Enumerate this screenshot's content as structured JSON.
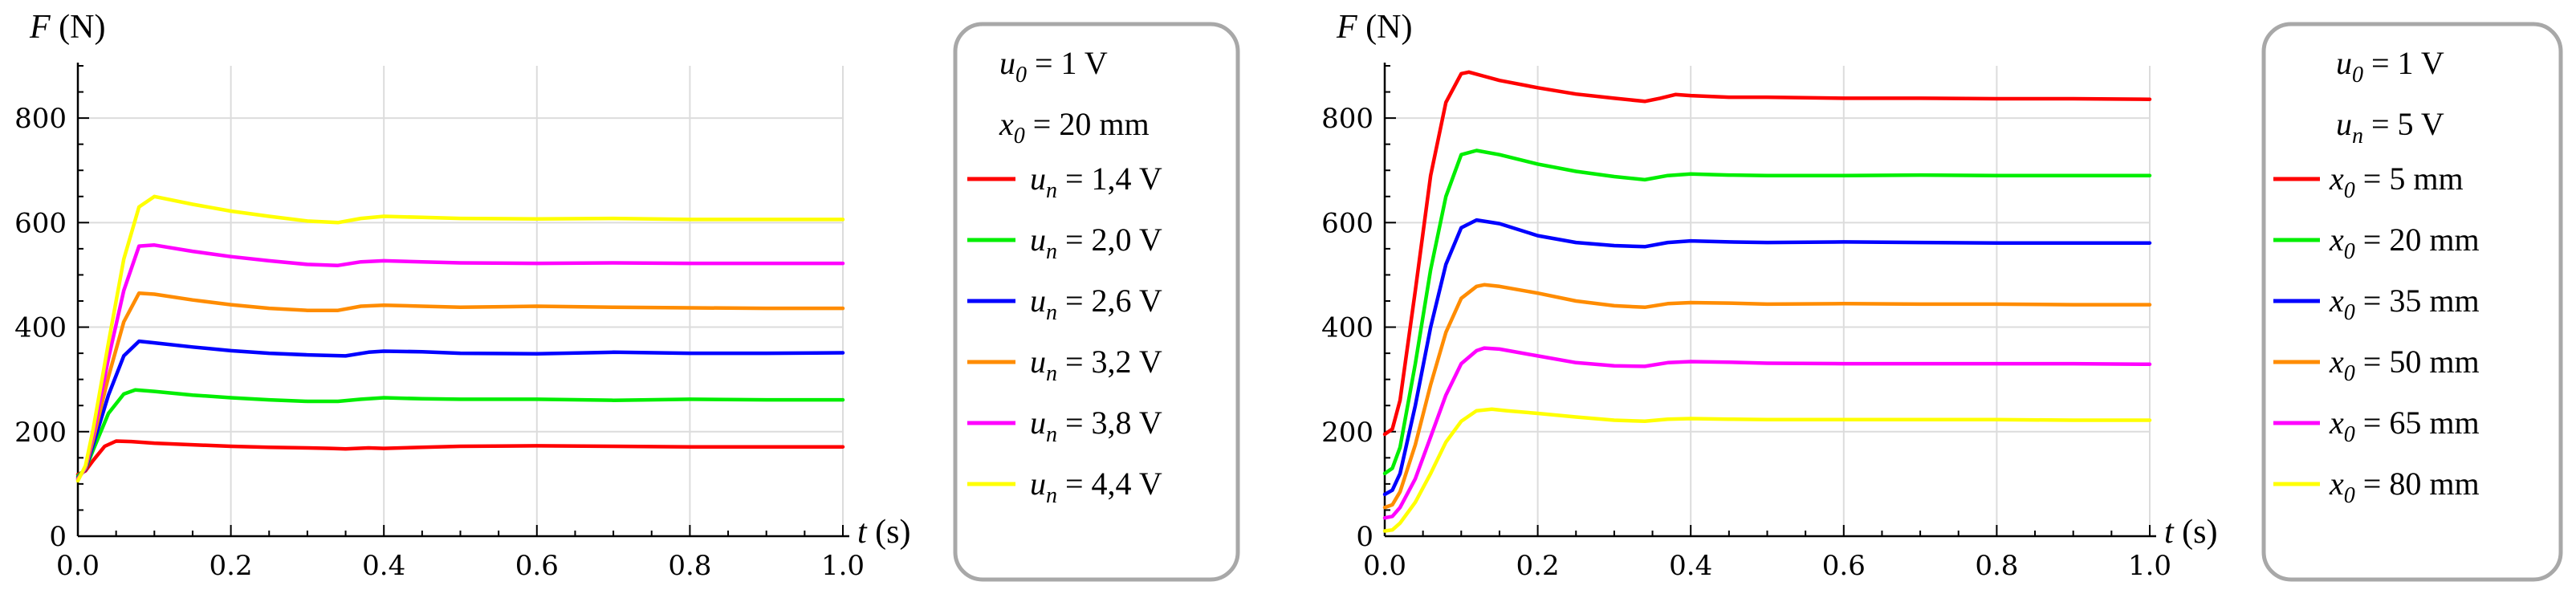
{
  "charts": [
    {
      "chart_data": {
        "type": "line",
        "title": "",
        "xlabel": "t (s)",
        "ylabel": "F (N)",
        "xlim": [
          0,
          1
        ],
        "ylim": [
          0,
          900
        ],
        "xticks": [
          "0.0",
          "0.2",
          "0.4",
          "0.6",
          "0.8",
          "1.0"
        ],
        "yticks": [
          "0",
          "200",
          "400",
          "600",
          "800"
        ],
        "xtick_values": [
          0,
          0.2,
          0.4,
          0.6,
          0.8,
          1.0
        ],
        "ytick_values": [
          0,
          200,
          400,
          600,
          800
        ],
        "grid": true,
        "legend_position": "right",
        "legend_header": [
          {
            "var": "u",
            "sub": "0",
            "text": " = 1 V"
          },
          {
            "var": "x",
            "sub": "0",
            "text": " = 20 mm"
          }
        ],
        "series": [
          {
            "name": "u_n = 1,4 V",
            "var": "u",
            "sub": "n",
            "text": " = 1,4 V",
            "color": "#ff0000",
            "x": [
              0,
              0.01,
              0.02,
              0.035,
              0.05,
              0.07,
              0.1,
              0.15,
              0.2,
              0.25,
              0.3,
              0.33,
              0.35,
              0.38,
              0.4,
              0.45,
              0.5,
              0.6,
              0.7,
              0.8,
              0.9,
              1.0
            ],
            "y": [
              118,
              125,
              145,
              172,
              182,
              181,
              178,
              175,
              172,
              170,
              169,
              168,
              167,
              169,
              168,
              170,
              172,
              173,
              172,
              171,
              171,
              171
            ]
          },
          {
            "name": "u_n = 2,0 V",
            "var": "u",
            "sub": "n",
            "text": " = 2,0 V",
            "color": "#00ee00",
            "x": [
              0,
              0.01,
              0.02,
              0.04,
              0.06,
              0.075,
              0.1,
              0.15,
              0.2,
              0.25,
              0.3,
              0.34,
              0.37,
              0.4,
              0.45,
              0.5,
              0.6,
              0.7,
              0.8,
              0.9,
              1.0
            ],
            "y": [
              115,
              128,
              165,
              235,
              272,
              280,
              277,
              270,
              265,
              261,
              258,
              258,
              262,
              265,
              263,
              262,
              262,
              260,
              262,
              261,
              261
            ]
          },
          {
            "name": "u_n = 2,6 V",
            "var": "u",
            "sub": "n",
            "text": " = 2,6 V",
            "color": "#0000ff",
            "x": [
              0,
              0.01,
              0.02,
              0.04,
              0.06,
              0.08,
              0.1,
              0.15,
              0.2,
              0.25,
              0.3,
              0.35,
              0.38,
              0.4,
              0.45,
              0.5,
              0.6,
              0.7,
              0.8,
              0.9,
              1.0
            ],
            "y": [
              112,
              128,
              175,
              270,
              345,
              373,
              370,
              362,
              355,
              350,
              347,
              345,
              352,
              354,
              353,
              350,
              349,
              352,
              350,
              350,
              351
            ]
          },
          {
            "name": "u_n = 3,2 V",
            "var": "u",
            "sub": "n",
            "text": " = 3,2 V",
            "color": "#ff8c00",
            "x": [
              0,
              0.01,
              0.02,
              0.04,
              0.06,
              0.08,
              0.1,
              0.15,
              0.2,
              0.25,
              0.3,
              0.34,
              0.37,
              0.4,
              0.45,
              0.5,
              0.6,
              0.7,
              0.8,
              0.9,
              1.0
            ],
            "y": [
              110,
              130,
              185,
              305,
              410,
              465,
              463,
              452,
              443,
              436,
              432,
              432,
              440,
              442,
              440,
              438,
              440,
              438,
              437,
              436,
              436
            ]
          },
          {
            "name": "u_n = 3,8 V",
            "var": "u",
            "sub": "n",
            "text": " = 3,8 V",
            "color": "#ff00ff",
            "x": [
              0,
              0.01,
              0.02,
              0.04,
              0.06,
              0.08,
              0.1,
              0.15,
              0.2,
              0.25,
              0.3,
              0.34,
              0.37,
              0.4,
              0.45,
              0.5,
              0.6,
              0.7,
              0.8,
              0.9,
              1.0
            ],
            "y": [
              108,
              132,
              195,
              340,
              470,
              555,
              557,
              545,
              535,
              527,
              520,
              518,
              525,
              527,
              525,
              523,
              522,
              523,
              522,
              522,
              522
            ]
          },
          {
            "name": "u_n = 4,4 V",
            "var": "u",
            "sub": "n",
            "text": " = 4,4 V",
            "color": "#ffff00",
            "x": [
              0,
              0.01,
              0.02,
              0.04,
              0.06,
              0.08,
              0.1,
              0.15,
              0.2,
              0.25,
              0.3,
              0.34,
              0.37,
              0.4,
              0.45,
              0.5,
              0.6,
              0.7,
              0.8,
              0.9,
              1.0
            ],
            "y": [
              106,
              135,
              205,
              370,
              530,
              630,
              650,
              635,
              622,
              612,
              603,
              600,
              608,
              612,
              610,
              608,
              607,
              608,
              606,
              606,
              606
            ]
          }
        ]
      }
    },
    {
      "chart_data": {
        "type": "line",
        "title": "",
        "xlabel": "t (s)",
        "ylabel": "F (N)",
        "xlim": [
          0,
          1
        ],
        "ylim": [
          0,
          900
        ],
        "xticks": [
          "0.0",
          "0.2",
          "0.4",
          "0.6",
          "0.8",
          "1.0"
        ],
        "yticks": [
          "0",
          "200",
          "400",
          "600",
          "800"
        ],
        "xtick_values": [
          0,
          0.2,
          0.4,
          0.6,
          0.8,
          1.0
        ],
        "ytick_values": [
          0,
          200,
          400,
          600,
          800
        ],
        "grid": true,
        "legend_position": "right",
        "legend_header": [
          {
            "var": "u",
            "sub": "0",
            "text": " = 1 V"
          },
          {
            "var": "u",
            "sub": "n",
            "text": " = 5 V"
          }
        ],
        "series": [
          {
            "name": "x_0 = 5 mm",
            "var": "x",
            "sub": "0",
            "text": " = 5 mm",
            "color": "#ff0000",
            "x": [
              0,
              0.01,
              0.02,
              0.04,
              0.06,
              0.08,
              0.1,
              0.11,
              0.13,
              0.15,
              0.2,
              0.25,
              0.3,
              0.34,
              0.36,
              0.38,
              0.4,
              0.45,
              0.5,
              0.6,
              0.7,
              0.8,
              0.9,
              1.0
            ],
            "y": [
              195,
              205,
              260,
              470,
              690,
              830,
              885,
              888,
              880,
              872,
              858,
              846,
              838,
              832,
              838,
              845,
              843,
              840,
              840,
              838,
              838,
              837,
              837,
              836
            ]
          },
          {
            "name": "x_0 = 20 mm",
            "var": "x",
            "sub": "0",
            "text": " = 20 mm",
            "color": "#00ee00",
            "x": [
              0,
              0.01,
              0.02,
              0.04,
              0.06,
              0.08,
              0.1,
              0.12,
              0.15,
              0.2,
              0.25,
              0.3,
              0.34,
              0.37,
              0.4,
              0.45,
              0.5,
              0.6,
              0.7,
              0.8,
              0.9,
              1.0
            ],
            "y": [
              120,
              130,
              170,
              330,
              510,
              650,
              730,
              738,
              730,
              712,
              698,
              688,
              682,
              690,
              693,
              691,
              690,
              690,
              691,
              690,
              690,
              690
            ]
          },
          {
            "name": "x_0 = 35 mm",
            "var": "x",
            "sub": "0",
            "text": " = 35 mm",
            "color": "#0000ff",
            "x": [
              0,
              0.01,
              0.02,
              0.04,
              0.06,
              0.08,
              0.1,
              0.12,
              0.15,
              0.2,
              0.25,
              0.3,
              0.34,
              0.37,
              0.4,
              0.45,
              0.5,
              0.6,
              0.7,
              0.8,
              0.9,
              1.0
            ],
            "y": [
              80,
              88,
              120,
              250,
              400,
              520,
              590,
              605,
              598,
              575,
              562,
              556,
              554,
              562,
              565,
              563,
              562,
              563,
              562,
              561,
              561,
              561
            ]
          },
          {
            "name": "x_0 = 50 mm",
            "var": "x",
            "sub": "0",
            "text": " = 50 mm",
            "color": "#ff8c00",
            "x": [
              0,
              0.01,
              0.02,
              0.04,
              0.06,
              0.08,
              0.1,
              0.12,
              0.13,
              0.15,
              0.2,
              0.25,
              0.3,
              0.34,
              0.37,
              0.4,
              0.45,
              0.5,
              0.6,
              0.7,
              0.8,
              0.9,
              1.0
            ],
            "y": [
              55,
              60,
              85,
              175,
              290,
              390,
              455,
              478,
              481,
              478,
              465,
              450,
              441,
              438,
              445,
              447,
              446,
              444,
              445,
              444,
              444,
              443,
              443
            ]
          },
          {
            "name": "x_0 = 65 mm",
            "var": "x",
            "sub": "0",
            "text": " = 65 mm",
            "color": "#ff00ff",
            "x": [
              0,
              0.01,
              0.02,
              0.04,
              0.06,
              0.08,
              0.1,
              0.12,
              0.13,
              0.15,
              0.2,
              0.25,
              0.3,
              0.34,
              0.37,
              0.4,
              0.45,
              0.5,
              0.6,
              0.7,
              0.8,
              0.9,
              1.0
            ],
            "y": [
              35,
              38,
              55,
              110,
              190,
              270,
              330,
              355,
              360,
              358,
              345,
              332,
              326,
              325,
              332,
              334,
              333,
              331,
              330,
              330,
              330,
              330,
              329
            ]
          },
          {
            "name": "x_0 = 80 mm",
            "var": "x",
            "sub": "0",
            "text": " = 80 mm",
            "color": "#ffff00",
            "x": [
              0,
              0.01,
              0.02,
              0.04,
              0.06,
              0.08,
              0.1,
              0.12,
              0.14,
              0.16,
              0.2,
              0.25,
              0.3,
              0.34,
              0.37,
              0.4,
              0.45,
              0.5,
              0.6,
              0.7,
              0.8,
              0.9,
              1.0
            ],
            "y": [
              10,
              12,
              25,
              65,
              120,
              180,
              220,
              240,
              243,
              240,
              235,
              228,
              222,
              220,
              224,
              225,
              224,
              223,
              223,
              223,
              223,
              222,
              222
            ]
          }
        ]
      }
    }
  ]
}
